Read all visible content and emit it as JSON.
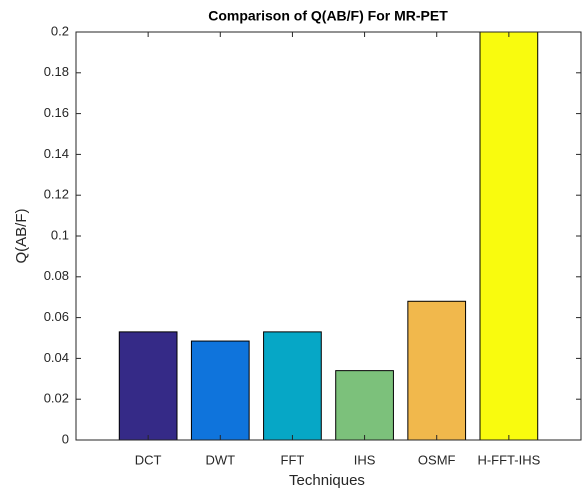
{
  "chart_data": {
    "type": "bar",
    "title": "Comparison of Q(AB/F) For MR-PET",
    "x_label": "Techniques",
    "y_label": "Q(AB/F)",
    "categories": [
      "DCT",
      "DWT",
      "FFT",
      "IHS",
      "OSMF",
      "H-FFT-IHS"
    ],
    "values": [
      0.053,
      0.0485,
      0.053,
      0.034,
      0.068,
      0.2
    ],
    "colors": [
      "#352a87",
      "#0f74dc",
      "#06a7c6",
      "#7cc17b",
      "#f1b84c",
      "#f9fb0e"
    ],
    "ylim": [
      0,
      0.2
    ],
    "yticks": [
      0,
      0.02,
      0.04,
      0.06,
      0.08,
      0.1,
      0.12,
      0.14,
      0.16,
      0.18,
      0.2
    ],
    "grid": false
  }
}
